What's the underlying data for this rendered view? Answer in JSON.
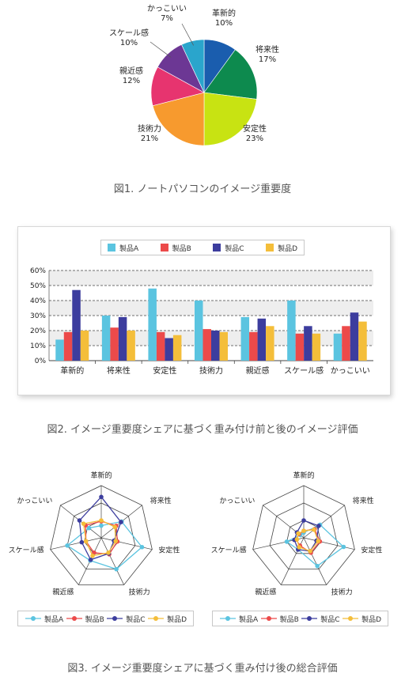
{
  "colors": {
    "A": "#5bc4e0",
    "B": "#ec4a4a",
    "C": "#3c3d9e",
    "D": "#f4be3a",
    "pie": [
      "#1a5dae",
      "#0d8a4e",
      "#c8e312",
      "#f79a2e",
      "#e7346f",
      "#6c3794",
      "#2aa5cc"
    ]
  },
  "chart_data": [
    {
      "type": "pie",
      "categories": [
        "革新的",
        "将来性",
        "安定性",
        "技術力",
        "親近感",
        "スケール感",
        "かっこいい"
      ],
      "values": [
        10,
        17,
        23,
        21,
        12,
        10,
        7
      ],
      "value_labels": [
        "10%",
        "17%",
        "23%",
        "21%",
        "12%",
        "10%",
        "7%"
      ],
      "caption": "図1. ノートパソコンのイメージ重要度"
    },
    {
      "type": "bar",
      "categories": [
        "革新的",
        "将来性",
        "安定性",
        "技術力",
        "親近感",
        "スケール感",
        "かっこいい"
      ],
      "series": [
        {
          "name": "製品A",
          "values": [
            14,
            30,
            48,
            40,
            29,
            40,
            18
          ]
        },
        {
          "name": "製品B",
          "values": [
            19,
            22,
            19,
            21,
            19,
            18,
            23
          ]
        },
        {
          "name": "製品C",
          "values": [
            47,
            29,
            15,
            20,
            28,
            23,
            32
          ]
        },
        {
          "name": "製品D",
          "values": [
            20,
            20,
            17,
            19,
            23,
            18,
            26
          ]
        }
      ],
      "ylim": [
        0,
        60
      ],
      "yticks": [
        "0%",
        "10%",
        "20%",
        "30%",
        "40%",
        "50%",
        "60%"
      ],
      "legend_position": "top",
      "grid": true,
      "caption": "図2. イメージ重要度シェアに基づく重み付け前と後のイメージ評価"
    },
    {
      "type": "radar",
      "categories": [
        "革新的",
        "将来性",
        "安定性",
        "技術力",
        "親近感",
        "スケール感",
        "かっこいい"
      ],
      "series": [
        {
          "name": "製品A",
          "values": [
            14,
            30,
            48,
            40,
            29,
            40,
            18
          ]
        },
        {
          "name": "製品B",
          "values": [
            19,
            22,
            19,
            21,
            19,
            18,
            23
          ]
        },
        {
          "name": "製品C",
          "values": [
            47,
            29,
            15,
            20,
            28,
            23,
            32
          ]
        },
        {
          "name": "製品D",
          "values": [
            20,
            20,
            17,
            19,
            23,
            18,
            26
          ]
        }
      ],
      "rlim": [
        0,
        60
      ],
      "legend_position": "bottom"
    },
    {
      "type": "radar",
      "categories": [
        "革新的",
        "将来性",
        "安定性",
        "技術力",
        "親近感",
        "スケール感",
        "かっこいい"
      ],
      "series": [
        {
          "name": "製品A",
          "values": [
            6,
            24,
            47,
            36,
            15,
            20,
            5
          ]
        },
        {
          "name": "製品B",
          "values": [
            8,
            16,
            19,
            19,
            10,
            9,
            7
          ]
        },
        {
          "name": "製品C",
          "values": [
            20,
            22,
            15,
            17,
            15,
            11,
            10
          ]
        },
        {
          "name": "製品D",
          "values": [
            8,
            15,
            17,
            17,
            12,
            8,
            8
          ]
        }
      ],
      "rlim": [
        0,
        60
      ],
      "legend_position": "bottom"
    }
  ],
  "figure3_caption": "図3. イメージ重要度シェアに基づく重み付け後の総合評価"
}
